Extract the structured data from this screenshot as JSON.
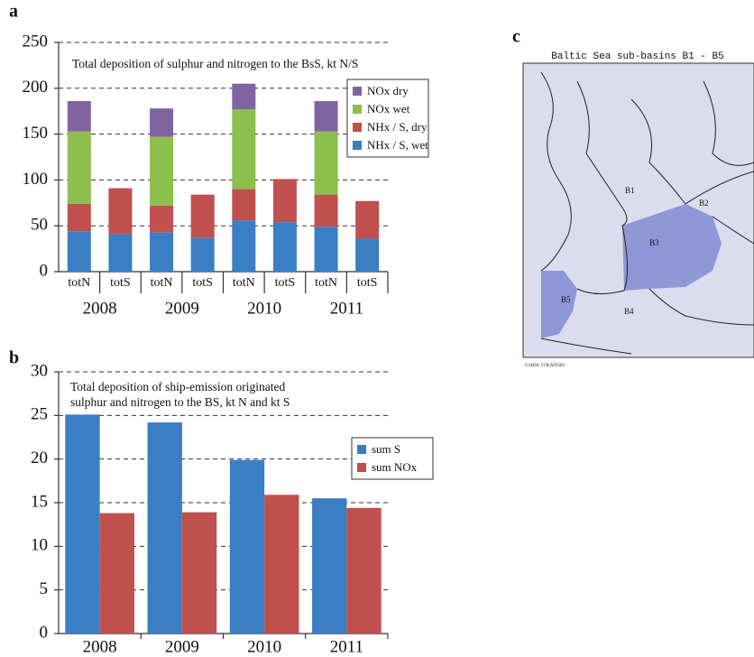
{
  "chart_data": [
    {
      "type": "bar",
      "stacked": true,
      "panel_label": "a",
      "title": "Total deposition of sulphur and nitrogen to the BsS, kt N/S",
      "categories": [
        "totN",
        "totS",
        "totN",
        "totS",
        "totN",
        "totS",
        "totN",
        "totS"
      ],
      "groups": [
        "2008",
        "2009",
        "2010",
        "2011"
      ],
      "series": [
        {
          "name": "NHx / S, wet",
          "color": "#3a7ec4",
          "values": [
            44,
            41,
            43,
            37,
            56,
            54,
            49,
            36
          ]
        },
        {
          "name": "NHx / S, dry",
          "color": "#c0504d",
          "values": [
            30,
            50,
            29,
            47,
            34,
            47,
            35,
            41
          ]
        },
        {
          "name": "NOx wet",
          "color": "#8cbf4e",
          "values": [
            79,
            null,
            75,
            null,
            87,
            null,
            69,
            null
          ]
        },
        {
          "name": "NOx dry",
          "color": "#8064a2",
          "values": [
            33,
            null,
            31,
            null,
            28,
            null,
            33,
            null
          ]
        }
      ],
      "ylim": [
        0,
        250
      ],
      "yticks": [
        0,
        50,
        100,
        150,
        200,
        250
      ],
      "grid": true,
      "legend": "right"
    },
    {
      "type": "bar",
      "stacked": false,
      "panel_label": "b",
      "title": [
        "Total deposition of ship-emission  originated",
        "sulphur  and nitrogen to the BS, kt N and kt S"
      ],
      "categories": [
        "2008",
        "2009",
        "2010",
        "2011"
      ],
      "series": [
        {
          "name": "sum S",
          "color": "#3a7ec4",
          "values": [
            25.1,
            24.2,
            19.9,
            15.5
          ]
        },
        {
          "name": "sum NOx",
          "color": "#c0504d",
          "values": [
            13.8,
            13.9,
            15.9,
            14.4
          ]
        }
      ],
      "ylim": [
        0,
        30
      ],
      "yticks": [
        0,
        5,
        10,
        15,
        20,
        25,
        30
      ],
      "grid": true,
      "legend": "right"
    }
  ],
  "map": {
    "panel_label": "c",
    "title": "Baltic Sea sub-basins B1 - B5",
    "labels": [
      "B1",
      "B2",
      "B3",
      "B4",
      "B5"
    ],
    "credit": "GrADS: COLA/IGES"
  }
}
